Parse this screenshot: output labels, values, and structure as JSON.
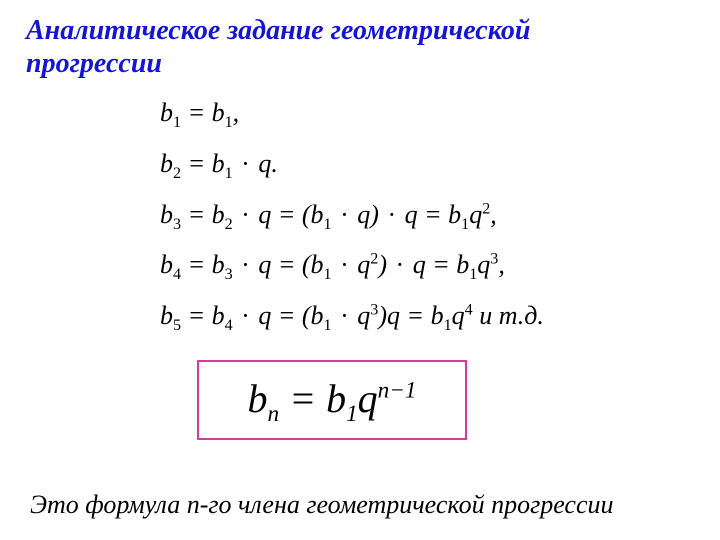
{
  "title": {
    "text": "Аналитическое задание геометрической прогрессии",
    "color": "#1414d4",
    "fontsize": 28
  },
  "derivation": {
    "color": "#000000",
    "fontsize": 26,
    "rows": {
      "r1": {
        "lhs_var": "b",
        "lhs_sub": "1",
        "eq": " = ",
        "rhs_var": "b",
        "rhs_sub": "1",
        "tail": ","
      },
      "r2": {
        "lhs_var": "b",
        "lhs_sub": "2",
        "eq": " = ",
        "rhs_var": "b",
        "rhs_sub": "1",
        "dot": " · ",
        "q": "q",
        "tail": "."
      },
      "r3": {
        "lhs_var": "b",
        "lhs_sub": "3",
        "eq": " = ",
        "a_var": "b",
        "a_sub": "2",
        "dot1": " · ",
        "q1": "q",
        "eq2": " = (",
        "b_var": "b",
        "b_sub": "1",
        "dot2": " · ",
        "q2": "q",
        "close": ")",
        "dot3": " · ",
        "q3": "q",
        "eq3": " = ",
        "c_var": "b",
        "c_sub": "1",
        "q4": "q",
        "sup": "2",
        "tail": ","
      },
      "r4": {
        "lhs_var": "b",
        "lhs_sub": "4",
        "eq": " = ",
        "a_var": "b",
        "a_sub": "3",
        "dot1": " · ",
        "q1": "q",
        "eq2": " = (",
        "b_var": "b",
        "b_sub": "1",
        "dot2": " · ",
        "q2": "q",
        "sup_in": "2",
        "close": ")",
        "dot3": " · ",
        "q3": "q",
        "eq3": " = ",
        "c_var": "b",
        "c_sub": "1",
        "q4": "q",
        "sup": "3",
        "tail": ","
      },
      "r5": {
        "lhs_var": "b",
        "lhs_sub": "5",
        "eq": " = ",
        "a_var": "b",
        "a_sub": "4",
        "dot1": " · ",
        "q1": "q",
        "eq2": " = (",
        "b_var": "b",
        "b_sub": "1",
        "dot2": " · ",
        "q2": "q",
        "sup_in": "3",
        "close": ")",
        "q3": "q",
        "eq3": " = ",
        "c_var": "b",
        "c_sub": "1",
        "q4": "q",
        "sup": "4",
        "extra": "   и   т.д."
      }
    }
  },
  "formula": {
    "border_color": "#d23ca0",
    "fontsize": 40,
    "b": "b",
    "n_sub": "n",
    "eq": " = ",
    "b1": "b",
    "one_sub": "1",
    "q": "q",
    "exp": "n−1"
  },
  "caption": {
    "text": "Это формула n-го члена геометрической прогрессии",
    "fontsize": 26,
    "color": "#000000"
  }
}
